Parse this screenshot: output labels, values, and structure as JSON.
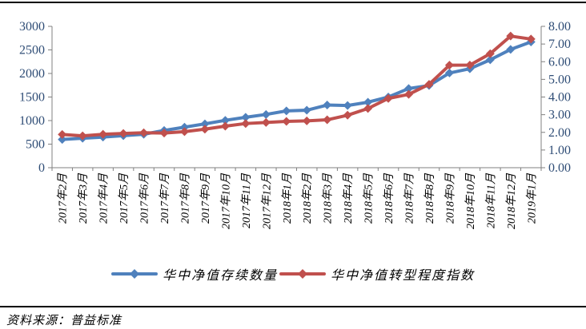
{
  "page": {
    "source_note": "资料来源：普益标准"
  },
  "colors": {
    "series_blue": "#4F81BD",
    "series_red": "#C0504D",
    "axis_line": "#808080",
    "axis_value_text": "#2F4D76",
    "category_text": "#000000",
    "rule": "#000000"
  },
  "chart_data": {
    "type": "line",
    "marker": "diamond",
    "grid": false,
    "legend_position": "bottom",
    "categories": [
      "2017年2月",
      "2017年3月",
      "2017年4月",
      "2017年5月",
      "2017年6月",
      "2017年7月",
      "2017年8月",
      "2017年9月",
      "2017年10月",
      "2017年11月",
      "2017年12月",
      "2018年1月",
      "2018年2月",
      "2018年3月",
      "2018年4月",
      "2018年5月",
      "2018年6月",
      "2018年7月",
      "2018年8月",
      "2018年9月",
      "2018年10月",
      "2018年11月",
      "2018年12月",
      "2019年1月"
    ],
    "series": [
      {
        "name": "华中净值存续数量",
        "axis": "left",
        "color": "#4F81BD",
        "values": [
          600,
          625,
          650,
          680,
          710,
          790,
          860,
          930,
          1005,
          1070,
          1130,
          1205,
          1220,
          1330,
          1320,
          1390,
          1500,
          1680,
          1745,
          2010,
          2100,
          2290,
          2510,
          2670
        ]
      },
      {
        "name": "华中净值转型程度指数",
        "axis": "right",
        "color": "#C0504D",
        "values": [
          1.88,
          1.8,
          1.89,
          1.94,
          1.98,
          1.96,
          2.04,
          2.18,
          2.35,
          2.5,
          2.56,
          2.62,
          2.65,
          2.71,
          2.97,
          3.35,
          3.92,
          4.15,
          4.72,
          5.8,
          5.81,
          6.45,
          7.45,
          7.28
        ]
      }
    ],
    "left_axis": {
      "min": 0,
      "max": 3000,
      "step": 500,
      "tick_labels": [
        "0",
        "500",
        "1000",
        "1500",
        "2000",
        "2500",
        "3000"
      ]
    },
    "right_axis": {
      "min": 0,
      "max": 8,
      "step": 1,
      "tick_labels": [
        "0.00",
        "1.00",
        "2.00",
        "3.00",
        "4.00",
        "5.00",
        "6.00",
        "7.00",
        "8.00"
      ]
    }
  }
}
